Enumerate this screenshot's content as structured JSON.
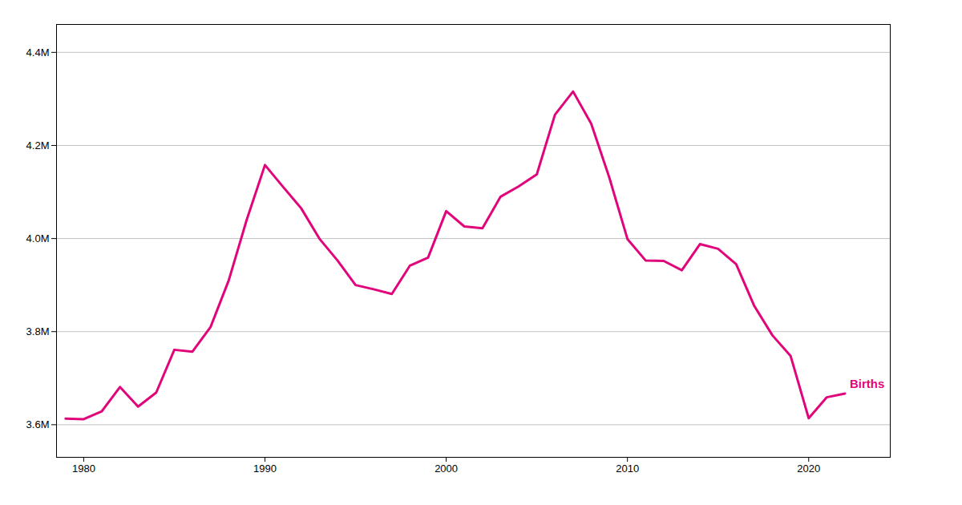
{
  "chart_data": {
    "type": "line",
    "x": [
      1979,
      1980,
      1981,
      1982,
      1983,
      1984,
      1985,
      1986,
      1987,
      1988,
      1989,
      1990,
      1991,
      1992,
      1993,
      1994,
      1995,
      1996,
      1997,
      1998,
      1999,
      2000,
      2001,
      2002,
      2003,
      2004,
      2005,
      2006,
      2007,
      2008,
      2009,
      2010,
      2011,
      2012,
      2013,
      2014,
      2015,
      2016,
      2017,
      2018,
      2019,
      2020,
      2021,
      2022
    ],
    "series": [
      {
        "name": "Births",
        "color": "#E0057A",
        "values": [
          3613000,
          3612000,
          3629000,
          3681000,
          3639000,
          3669000,
          3761000,
          3757000,
          3810000,
          3910000,
          4041000,
          4158000,
          4111000,
          4065000,
          4000000,
          3953000,
          3900000,
          3891000,
          3881000,
          3942000,
          3959000,
          4059000,
          4026000,
          4022000,
          4090000,
          4112000,
          4138000,
          4266000,
          4316000,
          4247000,
          4131000,
          3999000,
          3953000,
          3952000,
          3932000,
          3988000,
          3978000,
          3945000,
          3855000,
          3792000,
          3748000,
          3614000,
          3659000,
          3667000
        ]
      }
    ],
    "xlim": [
      1978.5,
      2024.5
    ],
    "xticks": [
      1980,
      1990,
      2000,
      2010,
      2020
    ],
    "ylim": [
      3530000,
      4460000
    ],
    "yticks": [
      {
        "value": 3600000,
        "label": "3.6M"
      },
      {
        "value": 3800000,
        "label": "3.8M"
      },
      {
        "value": 4000000,
        "label": "4.0M"
      },
      {
        "value": 4200000,
        "label": "4.2M"
      },
      {
        "value": 4400000,
        "label": "4.4M"
      }
    ],
    "grid": "y"
  }
}
